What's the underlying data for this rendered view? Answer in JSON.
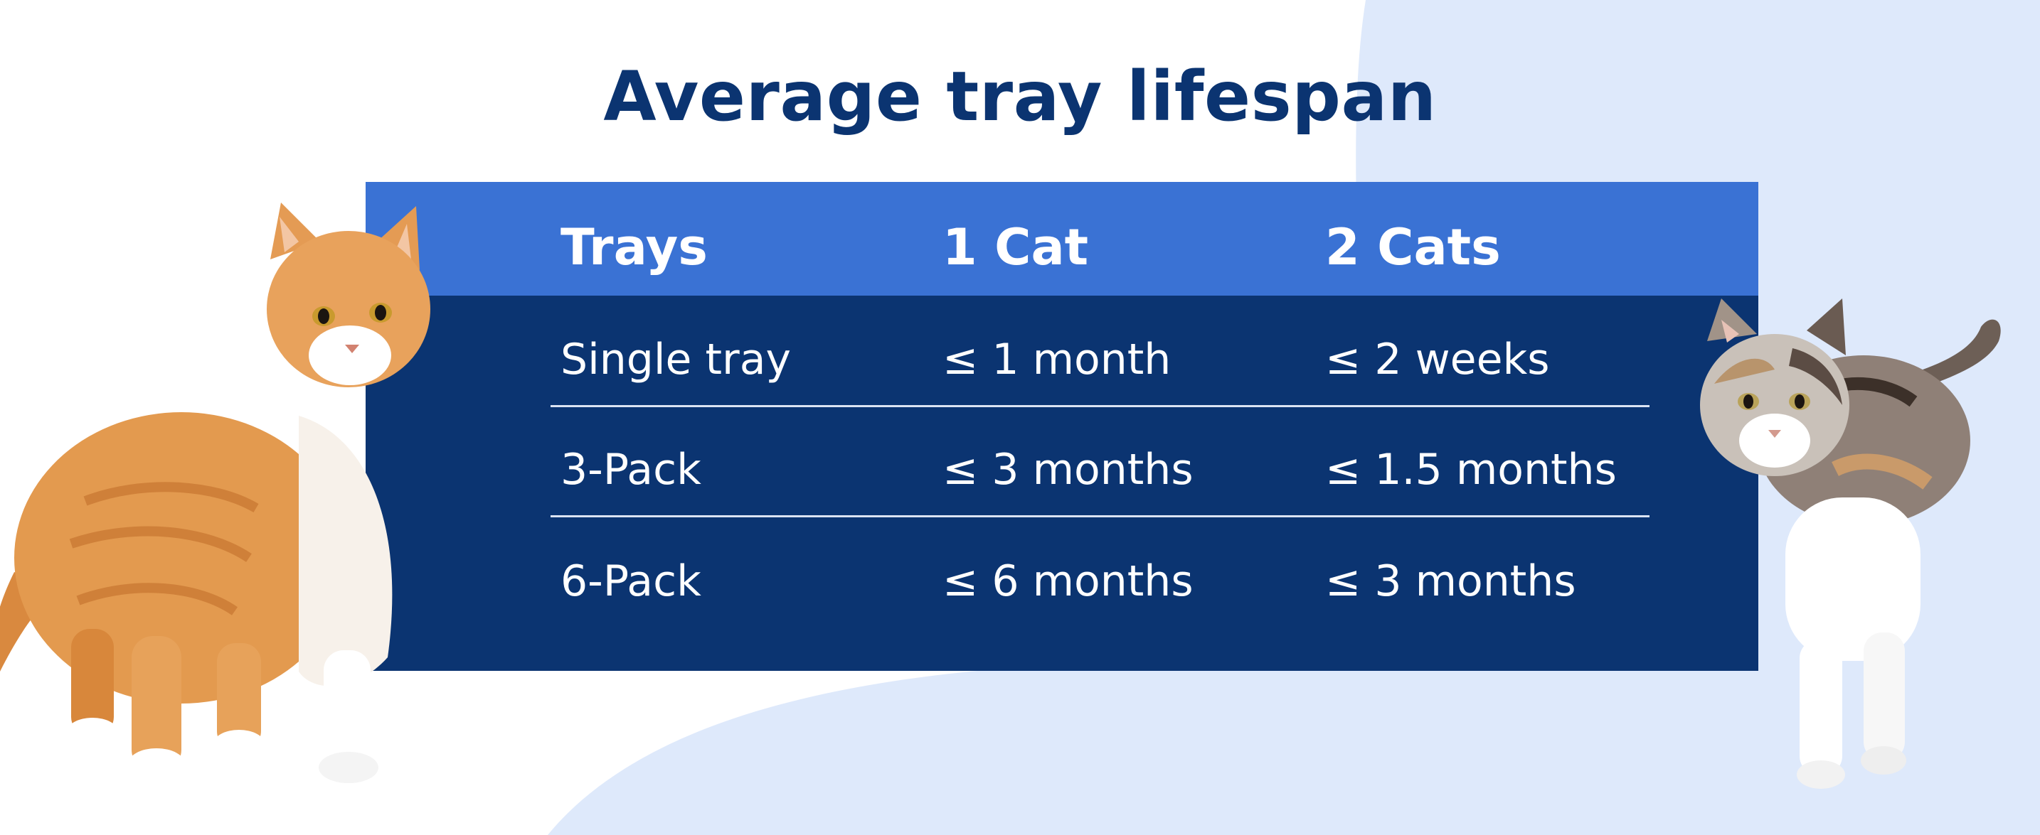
{
  "title": "Average tray lifespan",
  "table": {
    "headers": [
      "Trays",
      "1 Cat",
      "2 Cats"
    ],
    "rows": [
      [
        "Single tray",
        "≤ 1 month",
        "≤ 2 weeks"
      ],
      [
        "3-Pack",
        "≤ 3 months",
        "≤ 1.5 months"
      ],
      [
        "6-Pack",
        "≤ 6 months",
        "≤ 3 months"
      ]
    ]
  },
  "colors": {
    "title": "#0b3471",
    "header_bg": "#3a72d4",
    "body_bg": "#0b3471",
    "background_accent": "#dee9fb"
  }
}
